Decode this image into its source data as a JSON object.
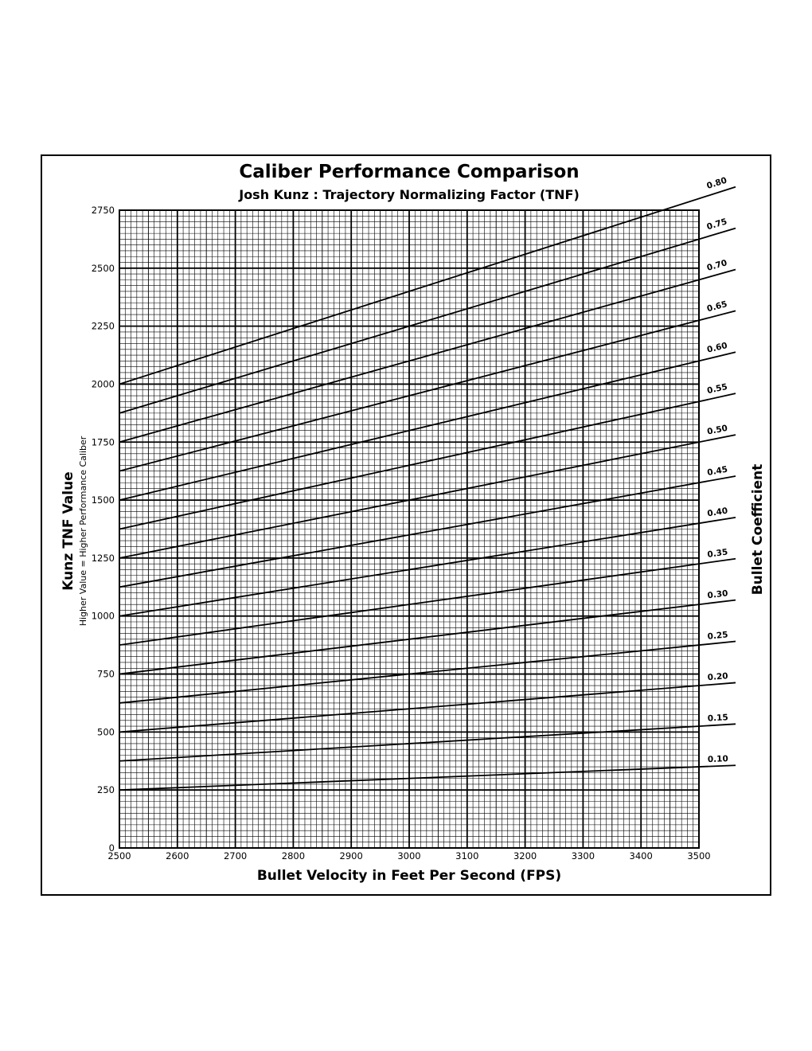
{
  "chart_data": {
    "type": "line",
    "title": "Caliber Performance Comparison",
    "subtitle": "Josh Kunz : Trajectory Normalizing Factor (TNF)",
    "xlabel": "Bullet Velocity in Feet Per Second (FPS)",
    "ylabel": "Kunz TNF Value",
    "ylabel_note": "Higher Value = Higher Performance Caliber",
    "right_label": "Bullet Coefficient",
    "xlim": [
      2500,
      3500
    ],
    "ylim": [
      0,
      2750
    ],
    "x_ticks": [
      2500,
      2600,
      2700,
      2800,
      2900,
      3000,
      3100,
      3200,
      3300,
      3400,
      3500
    ],
    "y_ticks": [
      0,
      250,
      500,
      750,
      1000,
      1250,
      1500,
      1750,
      2000,
      2250,
      2500,
      2750
    ],
    "grid": true,
    "series": [
      {
        "name": "0.10",
        "x": [
          2500,
          3500
        ],
        "y": [
          250,
          350
        ]
      },
      {
        "name": "0.15",
        "x": [
          2500,
          3500
        ],
        "y": [
          375,
          525
        ]
      },
      {
        "name": "0.20",
        "x": [
          2500,
          3500
        ],
        "y": [
          500,
          700
        ]
      },
      {
        "name": "0.25",
        "x": [
          2500,
          3500
        ],
        "y": [
          625,
          875
        ]
      },
      {
        "name": "0.30",
        "x": [
          2500,
          3500
        ],
        "y": [
          750,
          1050
        ]
      },
      {
        "name": "0.35",
        "x": [
          2500,
          3500
        ],
        "y": [
          875,
          1225
        ]
      },
      {
        "name": "0.40",
        "x": [
          2500,
          3500
        ],
        "y": [
          1000,
          1400
        ]
      },
      {
        "name": "0.45",
        "x": [
          2500,
          3500
        ],
        "y": [
          1125,
          1575
        ]
      },
      {
        "name": "0.50",
        "x": [
          2500,
          3500
        ],
        "y": [
          1250,
          1750
        ]
      },
      {
        "name": "0.55",
        "x": [
          2500,
          3500
        ],
        "y": [
          1375,
          1925
        ]
      },
      {
        "name": "0.60",
        "x": [
          2500,
          3500
        ],
        "y": [
          1500,
          2100
        ]
      },
      {
        "name": "0.65",
        "x": [
          2500,
          3500
        ],
        "y": [
          1625,
          2275
        ]
      },
      {
        "name": "0.70",
        "x": [
          2500,
          3500
        ],
        "y": [
          1750,
          2450
        ]
      },
      {
        "name": "0.75",
        "x": [
          2500,
          3500
        ],
        "y": [
          1875,
          2625
        ]
      },
      {
        "name": "0.80",
        "x": [
          2500,
          3500
        ],
        "y": [
          2000,
          2800
        ]
      }
    ]
  }
}
